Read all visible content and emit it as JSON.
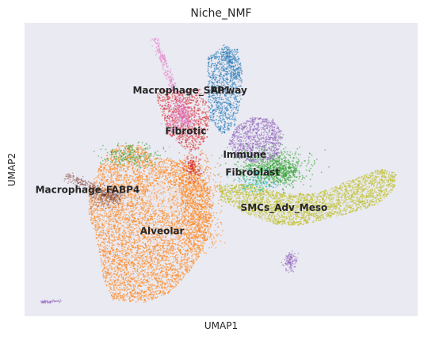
{
  "chart_data": {
    "type": "scatter",
    "title": "Niche_NMF",
    "xlabel": "UMAP1",
    "ylabel": "UMAP2",
    "grid": false,
    "legend": "on data",
    "background": "#EAEAF2",
    "point_size": "tiny",
    "clusters": [
      {
        "name": "Alveolar",
        "color": "#FF7F0E",
        "label_pos": [
          0.35,
          0.72
        ]
      },
      {
        "name": "Macrophage_FABP4",
        "color": "#8C564B",
        "label_pos": [
          0.16,
          0.58
        ]
      },
      {
        "name": "Macrophage_SPP1",
        "color": "#D62728",
        "label_pos": [
          0.4,
          0.24
        ]
      },
      {
        "name": "Airway",
        "color": "#1F77B4",
        "label_pos": [
          0.52,
          0.24
        ]
      },
      {
        "name": "Fibrotic",
        "color": "#E377C2",
        "label_pos": [
          0.41,
          0.38
        ]
      },
      {
        "name": "Immune",
        "color": "#9467BD",
        "label_pos": [
          0.56,
          0.46
        ]
      },
      {
        "name": "Fibroblast",
        "color": "#2CA02C",
        "label_pos": [
          0.58,
          0.52
        ]
      },
      {
        "name": "SMCs_Adv_Meso",
        "color": "#BCBD22",
        "label_pos": [
          0.66,
          0.64
        ]
      }
    ],
    "extra_colors": {
      "teal": "#17BECF"
    }
  }
}
